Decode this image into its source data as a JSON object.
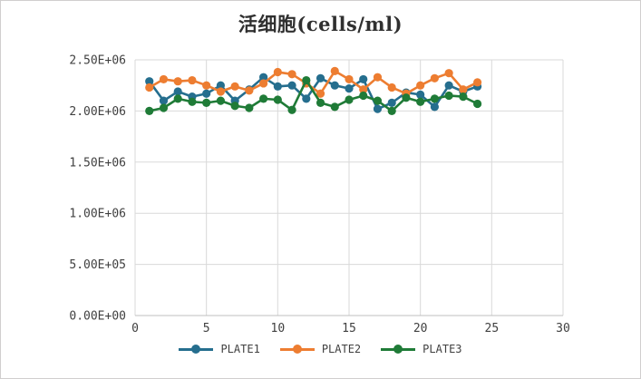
{
  "window": {
    "background": "#ffffff",
    "border_color": "#d0cece"
  },
  "chart_data": {
    "type": "line",
    "title": "活细胞(cells/ml)",
    "x": [
      1,
      2,
      3,
      4,
      5,
      6,
      7,
      8,
      9,
      10,
      11,
      12,
      13,
      14,
      15,
      16,
      17,
      18,
      19,
      20,
      21,
      22,
      23,
      24
    ],
    "series": [
      {
        "name": "PLATE1",
        "color": "#256e8e",
        "values": [
          2290000,
          2100000,
          2190000,
          2140000,
          2170000,
          2250000,
          2100000,
          2210000,
          2330000,
          2240000,
          2250000,
          2120000,
          2320000,
          2250000,
          2220000,
          2310000,
          2020000,
          2080000,
          2180000,
          2160000,
          2040000,
          2250000,
          2190000,
          2240000
        ]
      },
      {
        "name": "PLATE2",
        "color": "#ed7d31",
        "values": [
          2230000,
          2310000,
          2290000,
          2300000,
          2250000,
          2190000,
          2240000,
          2200000,
          2270000,
          2380000,
          2360000,
          2270000,
          2170000,
          2390000,
          2310000,
          2210000,
          2330000,
          2230000,
          2170000,
          2250000,
          2320000,
          2370000,
          2210000,
          2280000
        ]
      },
      {
        "name": "PLATE3",
        "color": "#1f7b37",
        "values": [
          2000000,
          2030000,
          2120000,
          2090000,
          2080000,
          2100000,
          2050000,
          2030000,
          2120000,
          2110000,
          2010000,
          2300000,
          2080000,
          2040000,
          2110000,
          2150000,
          2100000,
          2000000,
          2130000,
          2090000,
          2120000,
          2150000,
          2140000,
          2070000
        ]
      }
    ],
    "xlim": [
      0,
      30
    ],
    "ylim": [
      0,
      2500000
    ],
    "x_ticks": [
      {
        "v": 0,
        "label": "0"
      },
      {
        "v": 5,
        "label": "5"
      },
      {
        "v": 10,
        "label": "10"
      },
      {
        "v": 15,
        "label": "15"
      },
      {
        "v": 20,
        "label": "20"
      },
      {
        "v": 25,
        "label": "25"
      },
      {
        "v": 30,
        "label": "30"
      }
    ],
    "y_ticks": [
      {
        "v": 0,
        "label": "0.00E+00"
      },
      {
        "v": 500000,
        "label": "5.00E+05"
      },
      {
        "v": 1000000,
        "label": "1.00E+06"
      },
      {
        "v": 1500000,
        "label": "1.50E+06"
      },
      {
        "v": 2000000,
        "label": "2.00E+06"
      },
      {
        "v": 2500000,
        "label": "2.50E+06"
      }
    ],
    "grid": true,
    "grid_color": "#d9d9d9",
    "axis_color": "#bfbfbf",
    "tick_color": "#404040",
    "legend_position": "bottom",
    "marker": "circle"
  }
}
